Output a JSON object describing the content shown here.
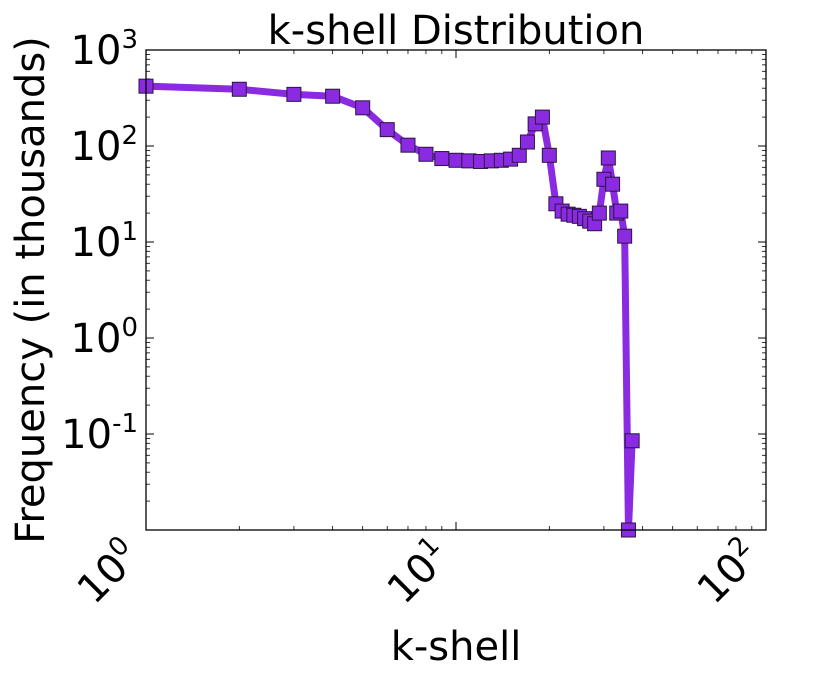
{
  "chart_data": {
    "type": "line",
    "title": "k-shell Distribution",
    "xlabel": "k-shell",
    "ylabel": "Frequency (in thousands)",
    "xscale": "log",
    "yscale": "log",
    "xlim": [
      1,
      100
    ],
    "ylim": [
      0.01,
      1000
    ],
    "grid": false,
    "legend": "none",
    "x_ticks": [
      {
        "base": "10",
        "exp": "0",
        "value": 1
      },
      {
        "base": "10",
        "exp": "1",
        "value": 10
      },
      {
        "base": "10",
        "exp": "2",
        "value": 100
      }
    ],
    "y_ticks": [
      {
        "base": "10",
        "exp": "-1",
        "value": 0.1
      },
      {
        "base": "10",
        "exp": "0",
        "value": 1
      },
      {
        "base": "10",
        "exp": "1",
        "value": 10
      },
      {
        "base": "10",
        "exp": "2",
        "value": 100
      },
      {
        "base": "10",
        "exp": "3",
        "value": 1000
      }
    ],
    "series": [
      {
        "color": "#8a2be2",
        "marker": "square",
        "x": [
          1,
          2,
          3,
          4,
          5,
          6,
          7,
          8,
          9,
          10,
          11,
          12,
          13,
          14,
          15,
          16,
          17,
          18,
          19,
          20,
          21,
          22,
          23,
          24,
          25,
          26,
          27,
          28,
          29,
          30,
          31,
          32,
          33,
          34,
          35,
          36,
          37
        ],
        "values": [
          420,
          390,
          345,
          330,
          250,
          148,
          102,
          82,
          74,
          71,
          70,
          69,
          70,
          71,
          73,
          80,
          110,
          170,
          200,
          80,
          25,
          21,
          19.5,
          19,
          18.5,
          17.5,
          16.5,
          15.5,
          20,
          45,
          75,
          40,
          20,
          21,
          11.5,
          0.01,
          0.085
        ]
      }
    ]
  }
}
